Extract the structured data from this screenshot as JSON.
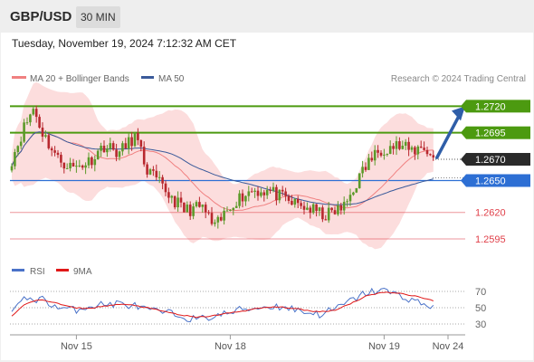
{
  "header": {
    "symbol": "GBP/USD",
    "timeframe": "30 MIN"
  },
  "datetime": "Tuesday, November 19, 2024 7:12:32 AM CET",
  "legend": [
    {
      "label": "MA 20 + Bollinger Bands",
      "color": "#f08080"
    },
    {
      "label": "MA 50",
      "color": "#3a5a9a"
    }
  ],
  "source": "Research © 2024 Trading Central",
  "colors": {
    "green": "#4c9a10",
    "blue": "#2d6fd4",
    "red": "#e0404a",
    "dark": "#2a2a2a",
    "up": "#5c9a2a",
    "down": "#b8282e",
    "arrow": "#2f5ea8",
    "band": "#fbd7d7"
  },
  "chart_data": [
    {
      "type": "candlestick",
      "ylim": [
        1.2578,
        1.2745
      ],
      "current_price": 1.267,
      "levels": [
        {
          "label": "1.2720",
          "value": 1.272,
          "kind": "resistance"
        },
        {
          "label": "1.2695",
          "value": 1.2695,
          "kind": "resistance"
        },
        {
          "label": "1.2670",
          "value": 1.267,
          "kind": "current"
        },
        {
          "label": "1.2650",
          "value": 1.265,
          "kind": "support"
        },
        {
          "label": "1.2620",
          "value": 1.262,
          "kind": "support_minor"
        },
        {
          "label": "1.2595",
          "value": 1.2595,
          "kind": "support_minor"
        }
      ],
      "forecast": {
        "from": 1.267,
        "to": 1.272
      },
      "xticks": [
        "Nov 15",
        "Nov 18",
        "Nov 19",
        "Nov 24"
      ],
      "series": [
        {
          "name": "MA 20 + Bollinger Bands"
        },
        {
          "name": "MA 50"
        }
      ],
      "close_path": [
        [
          0,
          1.267
        ],
        [
          4,
          1.27
        ],
        [
          7,
          1.2718
        ],
        [
          10,
          1.2695
        ],
        [
          15,
          1.267
        ],
        [
          20,
          1.2662
        ],
        [
          25,
          1.2668
        ],
        [
          30,
          1.2683
        ],
        [
          35,
          1.2676
        ],
        [
          40,
          1.2692
        ],
        [
          44,
          1.266
        ],
        [
          50,
          1.264
        ],
        [
          56,
          1.2622
        ],
        [
          62,
          1.2625
        ],
        [
          66,
          1.2605
        ],
        [
          72,
          1.263
        ],
        [
          78,
          1.2641
        ],
        [
          84,
          1.264
        ],
        [
          90,
          1.263
        ],
        [
          96,
          1.2624
        ],
        [
          102,
          1.2617
        ],
        [
          108,
          1.2625
        ],
        [
          112,
          1.2648
        ],
        [
          116,
          1.2668
        ],
        [
          120,
          1.268
        ],
        [
          125,
          1.2683
        ],
        [
          130,
          1.2678
        ],
        [
          134,
          1.2682
        ],
        [
          137,
          1.267
        ]
      ]
    },
    {
      "type": "line",
      "ylim": [
        20,
        80
      ],
      "yticks": [
        "70",
        "50",
        "30"
      ],
      "series": [
        {
          "name": "RSI",
          "color": "#4a72c8"
        },
        {
          "name": "9MA",
          "color": "#e01818"
        }
      ],
      "rsi_path": [
        [
          0,
          46
        ],
        [
          5,
          62
        ],
        [
          10,
          60
        ],
        [
          15,
          50
        ],
        [
          20,
          47
        ],
        [
          25,
          52
        ],
        [
          30,
          54
        ],
        [
          35,
          55
        ],
        [
          40,
          52
        ],
        [
          45,
          46
        ],
        [
          50,
          44
        ],
        [
          55,
          40
        ],
        [
          60,
          35
        ],
        [
          65,
          39
        ],
        [
          70,
          43
        ],
        [
          75,
          48
        ],
        [
          80,
          50
        ],
        [
          85,
          52
        ],
        [
          90,
          50
        ],
        [
          95,
          45
        ],
        [
          100,
          42
        ],
        [
          105,
          48
        ],
        [
          110,
          58
        ],
        [
          115,
          68
        ],
        [
          120,
          72
        ],
        [
          125,
          66
        ],
        [
          130,
          60
        ],
        [
          133,
          55
        ],
        [
          137,
          51
        ]
      ],
      "ma_path": [
        [
          0,
          40
        ],
        [
          5,
          56
        ],
        [
          10,
          60
        ],
        [
          15,
          55
        ],
        [
          20,
          50
        ],
        [
          25,
          49
        ],
        [
          30,
          52
        ],
        [
          35,
          54
        ],
        [
          40,
          53
        ],
        [
          45,
          49
        ],
        [
          50,
          45
        ],
        [
          55,
          41
        ],
        [
          60,
          38
        ],
        [
          65,
          40
        ],
        [
          70,
          43
        ],
        [
          75,
          46
        ],
        [
          80,
          49
        ],
        [
          85,
          51
        ],
        [
          90,
          50
        ],
        [
          95,
          47
        ],
        [
          100,
          45
        ],
        [
          105,
          47
        ],
        [
          110,
          55
        ],
        [
          115,
          64
        ],
        [
          120,
          69
        ],
        [
          125,
          68
        ],
        [
          130,
          65
        ],
        [
          133,
          63
        ],
        [
          137,
          58
        ]
      ]
    }
  ]
}
